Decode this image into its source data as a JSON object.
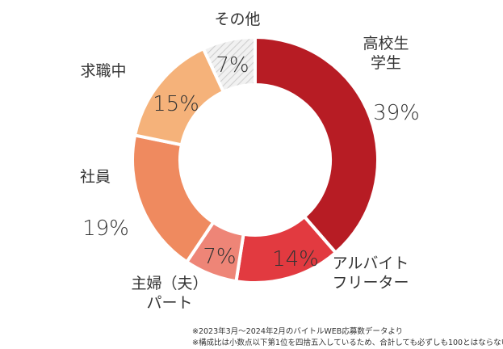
{
  "chart_data": {
    "type": "pie",
    "style": "donut",
    "slices": [
      {
        "label_lines": [
          "高校生",
          "学生"
        ],
        "value": 39,
        "value_text": "39%",
        "color": "#b71c24"
      },
      {
        "label_lines": [
          "アルバイト",
          "フリーター"
        ],
        "value": 14,
        "value_text": "14%",
        "color": "#e23a40"
      },
      {
        "label_lines": [
          "主婦（夫）",
          "パート"
        ],
        "value": 7,
        "value_text": "7%",
        "color": "#ee8577"
      },
      {
        "label_lines": [
          "社員"
        ],
        "value": 19,
        "value_text": "19%",
        "color": "#ef8a5f"
      },
      {
        "label_lines": [
          "求職中"
        ],
        "value": 15,
        "value_text": "15%",
        "color": "#f5b27a"
      },
      {
        "label_lines": [
          "その他"
        ],
        "value": 7,
        "value_text": "7%",
        "color": "#e6e6e6",
        "hatched": true
      }
    ],
    "legend": "none"
  },
  "notes": [
    "※2023年3月～2024年2月のバイトルWEB応募数データより",
    "※構成比は小数点以下第1位を四捨五入しているため、合計しても必ずしも100とはならない"
  ]
}
